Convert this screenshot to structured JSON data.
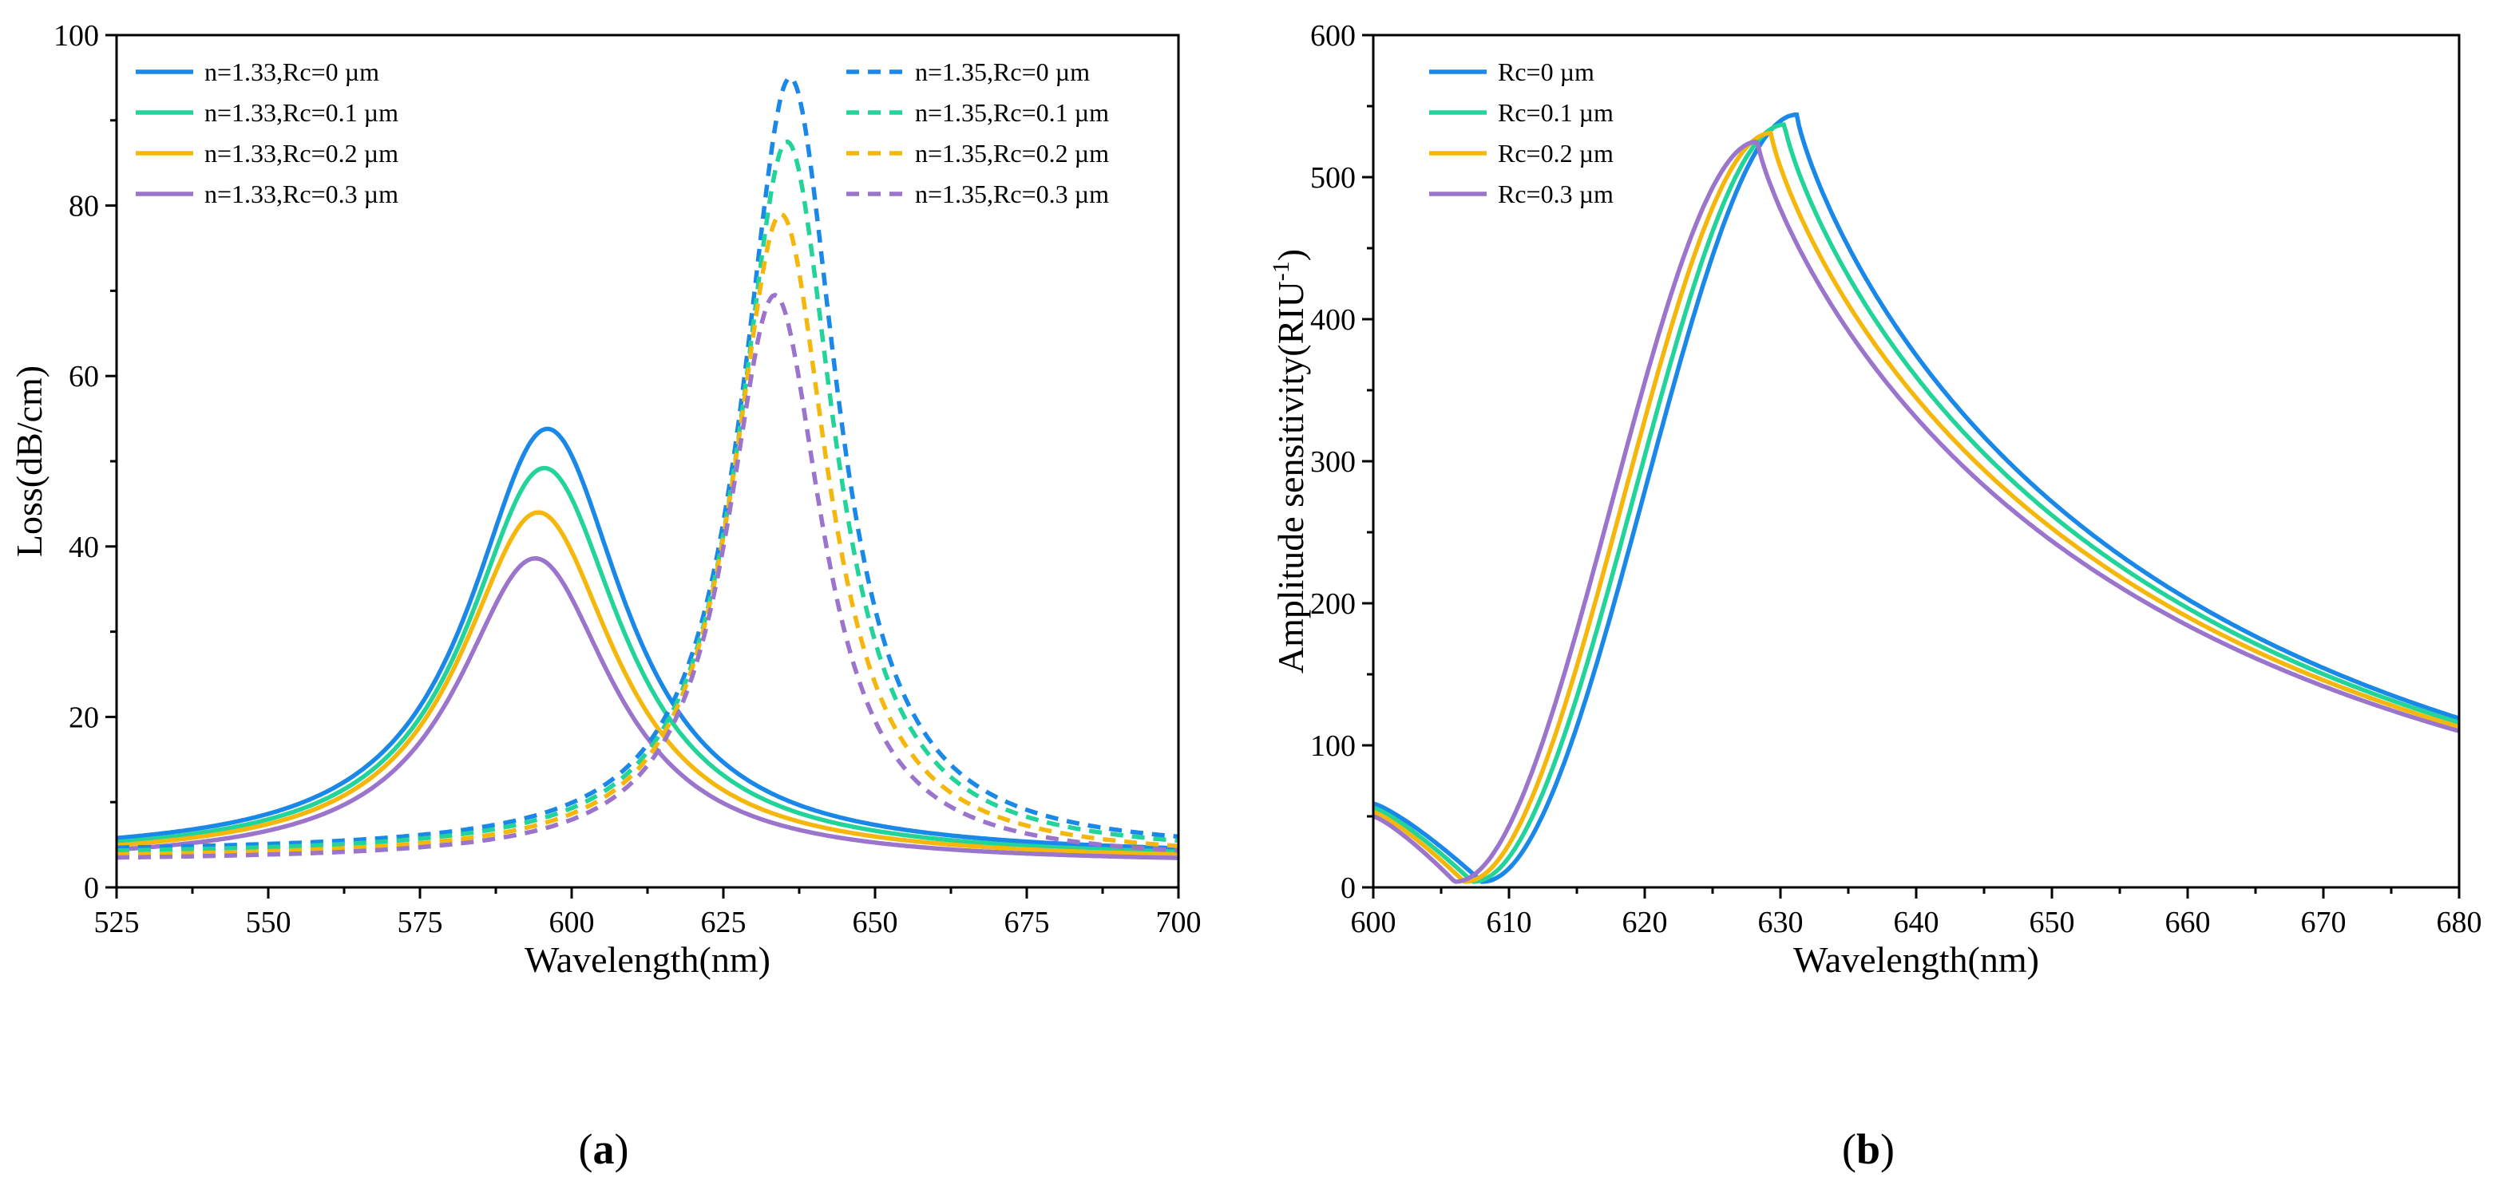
{
  "chart_data": [
    {
      "panel": "(a)",
      "panel_letter": "a",
      "type": "line",
      "xlabel": "Wavelength(nm)",
      "ylabel": "Loss(dB/cm)",
      "xlim": [
        525,
        700
      ],
      "ylim": [
        0,
        100
      ],
      "xticks": [
        525,
        550,
        575,
        600,
        625,
        650,
        675,
        700
      ],
      "yticks": [
        0,
        20,
        40,
        60,
        80,
        100
      ],
      "legend": "top",
      "series": [
        {
          "name": "n=1.33,Rc=0 µm",
          "color": "#1a88e8",
          "dash": "solid",
          "peak_x": 596,
          "peak_y": 53.8,
          "hw": 15.5,
          "base": 3.5
        },
        {
          "name": "n=1.33,Rc=0.1 µm",
          "color": "#22d39a",
          "dash": "solid",
          "peak_x": 595.5,
          "peak_y": 49.2,
          "hw": 15.5,
          "base": 3.2
        },
        {
          "name": "n=1.33,Rc=0.2 µm",
          "color": "#f5b70c",
          "dash": "solid",
          "peak_x": 594.5,
          "peak_y": 44,
          "hw": 15.5,
          "base": 3.0
        },
        {
          "name": "n=1.33,Rc=0.3 µm",
          "color": "#9b74cc",
          "dash": "solid",
          "peak_x": 594,
          "peak_y": 38.6,
          "hw": 15.5,
          "base": 2.7
        },
        {
          "name": "n=1.35,Rc=0 µm",
          "color": "#1a88e8",
          "dash": "dashed",
          "peak_x": 636,
          "peak_y": 95,
          "hw": 9.5,
          "base": 4.0
        },
        {
          "name": "n=1.35,Rc=0.1 µm",
          "color": "#22d39a",
          "dash": "dashed",
          "peak_x": 635.5,
          "peak_y": 87.5,
          "hw": 9.5,
          "base": 3.7
        },
        {
          "name": "n=1.35,Rc=0.2 µm",
          "color": "#f5b70c",
          "dash": "dashed",
          "peak_x": 634.5,
          "peak_y": 79,
          "hw": 9.5,
          "base": 3.3
        },
        {
          "name": "n=1.35,Rc=0.3 µm",
          "color": "#9b74cc",
          "dash": "dashed",
          "peak_x": 633.5,
          "peak_y": 69.5,
          "hw": 9.5,
          "base": 3.0
        }
      ]
    },
    {
      "panel": "(b)",
      "panel_letter": "b",
      "type": "line",
      "xlabel": "Wavelength(nm)",
      "ylabel": "Amplitude sensitivity(RIU",
      "ylabel_sup": "-1",
      "ylabel_end": ")",
      "xlim": [
        600,
        680
      ],
      "ylim": [
        0,
        600
      ],
      "xticks": [
        600,
        610,
        620,
        630,
        640,
        650,
        660,
        670,
        680
      ],
      "yticks": [
        0,
        100,
        200,
        300,
        400,
        500,
        600
      ],
      "legend": "top-left",
      "series": [
        {
          "name": "Rc=0 µm",
          "color": "#1a88e8",
          "start_y": 55,
          "min_x": 608,
          "peak_x": 631.2,
          "peak_y": 544,
          "end_y": 119
        },
        {
          "name": "Rc=0.1 µm",
          "color": "#22d39a",
          "start_y": 52,
          "min_x": 607.3,
          "peak_x": 630.3,
          "peak_y": 537,
          "end_y": 116
        },
        {
          "name": "Rc=0.2 µm",
          "color": "#f5b70c",
          "start_y": 49,
          "min_x": 606.7,
          "peak_x": 629.3,
          "peak_y": 531,
          "end_y": 113
        },
        {
          "name": "Rc=0.3 µm",
          "color": "#9b74cc",
          "start_y": 46,
          "min_x": 606,
          "peak_x": 628.3,
          "peak_y": 525,
          "end_y": 110
        }
      ]
    }
  ]
}
